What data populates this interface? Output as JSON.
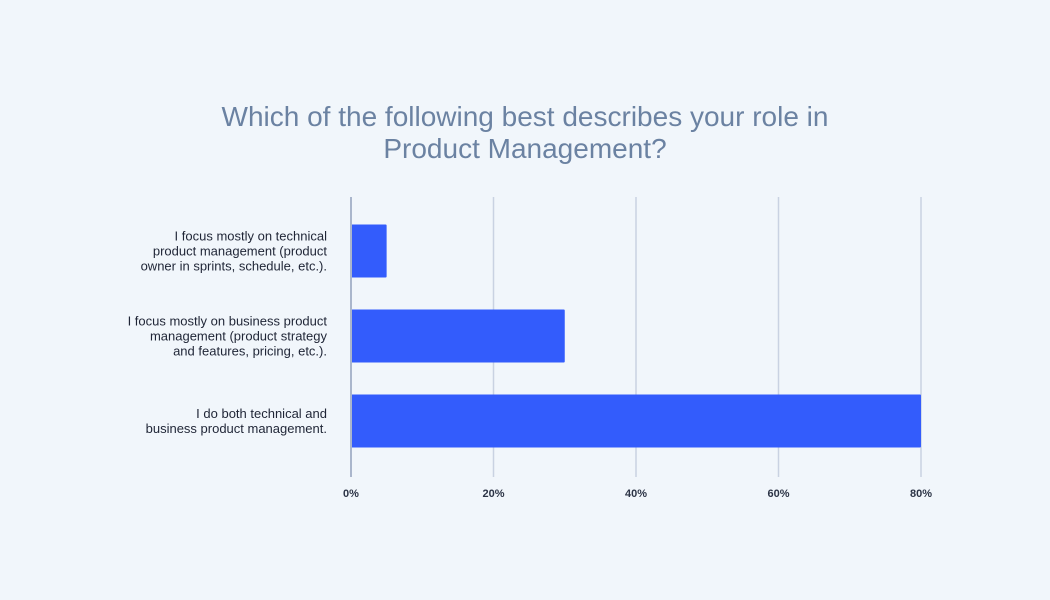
{
  "colors": {
    "background": "#f1f6fb",
    "title": "#6b82a2",
    "bar": "#335cfc",
    "gridline": "#c9d2e2",
    "axis": "#aab6cc",
    "text": "#1f2536"
  },
  "chart_data": {
    "type": "bar",
    "orientation": "horizontal",
    "title_lines": [
      "Which of the following best describes your role in",
      "Product Management?"
    ],
    "categories": [
      {
        "lines": [
          "I focus mostly on technical",
          "product management (product",
          "owner in sprints, schedule, etc.)."
        ]
      },
      {
        "lines": [
          "I focus mostly on business product",
          "management (product strategy",
          "and features, pricing, etc.)."
        ]
      },
      {
        "lines": [
          "I do both technical and",
          "business product management."
        ]
      }
    ],
    "values": [
      5,
      30,
      80
    ],
    "unit": "%",
    "xlim": [
      0,
      80
    ],
    "xticks": [
      0,
      20,
      40,
      60,
      80
    ],
    "xtick_labels": [
      "0%",
      "20%",
      "40%",
      "60%",
      "80%"
    ],
    "grid": true,
    "legend": false
  }
}
